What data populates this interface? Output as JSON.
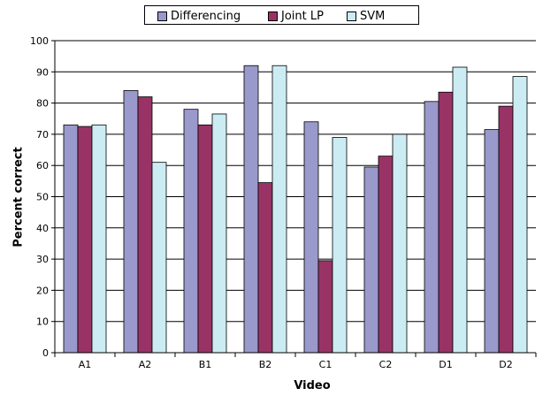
{
  "chart_data": {
    "type": "bar",
    "categories": [
      "A1",
      "A2",
      "B1",
      "B2",
      "C1",
      "C2",
      "D1",
      "D2"
    ],
    "series": [
      {
        "name": "Differencing",
        "values": [
          73,
          84,
          78,
          92,
          74,
          59.5,
          80.5,
          71.5
        ],
        "color": "#9999cc"
      },
      {
        "name": "Joint LP",
        "values": [
          72.5,
          82,
          73,
          54.5,
          29.5,
          63,
          83.5,
          79
        ],
        "color": "#993366"
      },
      {
        "name": "SVM",
        "values": [
          73,
          61,
          76.5,
          92,
          69,
          70,
          91.5,
          88.5
        ],
        "color": "#ccecf3"
      }
    ],
    "xlabel": "Video",
    "ylabel": "Percent correct",
    "ylim": [
      0,
      100
    ],
    "yticks": [
      "0",
      "10",
      "20",
      "30",
      "40",
      "50",
      "60",
      "70",
      "80",
      "90",
      "100"
    ],
    "grid": true,
    "legend_position": "top"
  }
}
